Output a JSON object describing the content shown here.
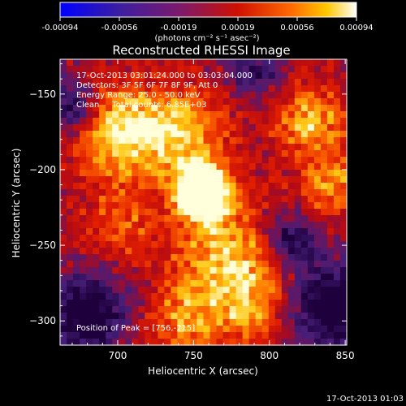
{
  "chart_data": {
    "type": "heatmap",
    "title": "Reconstructed RHESSI Image",
    "xlabel": "Heliocentric X (arcsec)",
    "ylabel": "Heliocentric Y (arcsec)",
    "xlim": [
      662,
      851
    ],
    "ylim": [
      -316,
      -127
    ],
    "xticks": [
      700,
      750,
      800,
      850
    ],
    "yticks": [
      -150,
      -200,
      -250,
      -300
    ],
    "colorbar": {
      "ticks": [
        "-0.00094",
        "-0.00056",
        "-0.00019",
        "0.00019",
        "0.00056",
        "0.00094"
      ],
      "range": [
        -0.00094,
        0.00094
      ],
      "unit_label": "(photons cm⁻² s⁻¹ asec⁻²)"
    },
    "colors": {
      "negative": "#3c1e64",
      "mid": "#d01000",
      "high": "#ff8c00",
      "peak": "#ffffc8"
    },
    "peak": {
      "x": 756,
      "y": -215,
      "value": 0.00094
    },
    "annotations": [
      "17-Oct-2013 03:01:24.000 to 03:03:04.000",
      "Detectors: 3F 5F 6F 7F 8F 9F, Att 0",
      "Energy Range: 25.0 - 50.0 keV",
      "Clean     Total counts: 6.85E+03"
    ],
    "peak_label": "Position of Peak = [756,-215]"
  },
  "footer_timestamp": "17-Oct-2013 01:03"
}
